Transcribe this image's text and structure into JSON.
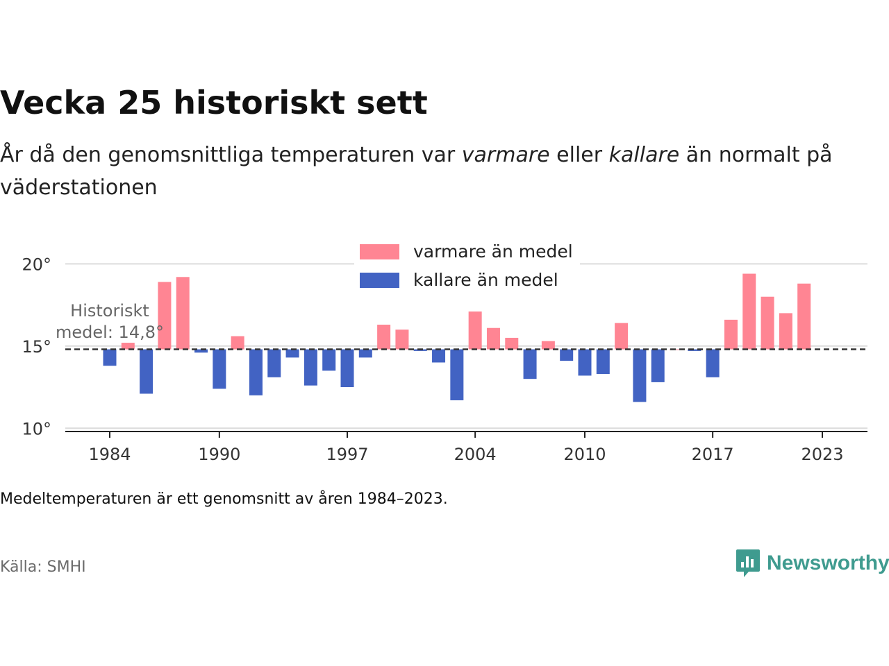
{
  "title": "Vecka 25 historiskt sett",
  "subtitle": {
    "part1": "År då den genomsnittliga temperaturen var ",
    "em1": "varmare",
    "part2": " eller ",
    "em2": "kallare",
    "part3": " än normalt på väderstationen"
  },
  "chart_data": {
    "type": "bar",
    "baseline": 14.8,
    "baseline_label": [
      "Historiskt",
      "medel: 14,8°"
    ],
    "x": [
      1984,
      1985,
      1986,
      1987,
      1988,
      1989,
      1990,
      1991,
      1992,
      1993,
      1994,
      1995,
      1996,
      1997,
      1998,
      1999,
      2000,
      2001,
      2002,
      2003,
      2004,
      2005,
      2006,
      2007,
      2008,
      2009,
      2010,
      2011,
      2012,
      2013,
      2014,
      2015,
      2016,
      2017,
      2018,
      2019,
      2020,
      2021,
      2022,
      2023
    ],
    "values": [
      13.8,
      15.2,
      12.1,
      18.9,
      19.2,
      14.6,
      12.4,
      15.6,
      12.0,
      13.1,
      14.3,
      12.6,
      13.5,
      12.5,
      14.3,
      16.3,
      16.0,
      14.7,
      14.0,
      11.7,
      17.1,
      16.1,
      15.5,
      13.0,
      15.3,
      14.1,
      13.2,
      13.3,
      16.4,
      11.6,
      12.8,
      14.8,
      14.7,
      13.1,
      16.6,
      19.4,
      18.0,
      17.0,
      18.8,
      null
    ],
    "series": [
      {
        "name": "varmare än medel",
        "color": "#ff8593"
      },
      {
        "name": "kallare än medel",
        "color": "#4263c3"
      }
    ],
    "y_ticks": [
      10,
      15,
      20
    ],
    "y_tick_labels": [
      "10°",
      "15°",
      "20°"
    ],
    "x_ticks": [
      1984,
      1990,
      1997,
      2004,
      2010,
      2017,
      2023
    ],
    "ylim": [
      9.8,
      20.9
    ],
    "legend_position": "top-center",
    "grid": true
  },
  "note": "Medeltemperaturen är ett genomsnitt av åren 1984–2023.",
  "source": "Källa: SMHI",
  "logo": {
    "text": "Newsworthy",
    "color": "#3f9b8f"
  }
}
